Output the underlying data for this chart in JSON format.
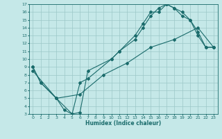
{
  "xlabel": "Humidex (Indice chaleur)",
  "ylabel": "",
  "bg_color": "#c5e8e8",
  "grid_color": "#9cc8c8",
  "line_color": "#1a6b6b",
  "xlim": [
    -0.5,
    23.5
  ],
  "ylim": [
    3,
    17
  ],
  "xticks": [
    0,
    1,
    2,
    3,
    4,
    5,
    6,
    7,
    8,
    9,
    10,
    11,
    12,
    13,
    14,
    15,
    16,
    17,
    18,
    19,
    20,
    21,
    22,
    23
  ],
  "yticks": [
    3,
    4,
    5,
    6,
    7,
    8,
    9,
    10,
    11,
    12,
    13,
    14,
    15,
    16,
    17
  ],
  "line1_x": [
    0,
    1,
    3,
    4,
    5,
    6,
    7,
    10,
    11,
    13,
    14,
    15,
    16,
    17,
    18,
    19,
    20,
    21,
    22,
    23
  ],
  "line1_y": [
    9,
    7,
    5,
    3.5,
    3,
    3.2,
    8.5,
    10,
    11,
    12.5,
    14,
    15.5,
    16.5,
    17,
    16.5,
    15.5,
    15,
    13,
    11.5,
    11.5
  ],
  "line2_x": [
    0,
    1,
    3,
    5,
    6,
    7,
    10,
    11,
    13,
    14,
    15,
    16,
    17,
    18,
    19,
    20,
    21,
    22,
    23
  ],
  "line2_y": [
    9,
    7,
    5,
    3,
    7,
    7.5,
    10,
    11,
    13,
    14.5,
    16,
    16,
    17,
    16.5,
    16,
    15,
    13.5,
    11.5,
    11.5
  ],
  "line3_x": [
    0,
    3,
    6,
    9,
    12,
    15,
    18,
    21,
    23
  ],
  "line3_y": [
    8.5,
    5,
    5.5,
    8,
    9.5,
    11.5,
    12.5,
    14,
    11.5
  ]
}
